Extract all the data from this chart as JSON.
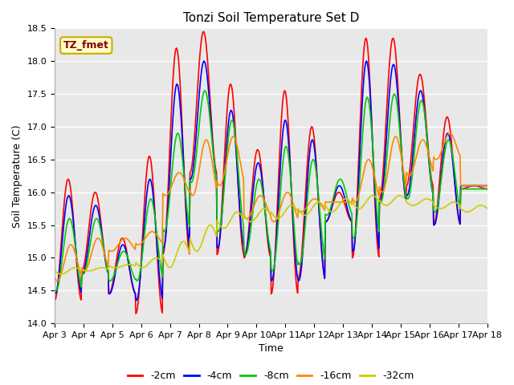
{
  "title": "Tonzi Soil Temperature Set D",
  "xlabel": "Time",
  "ylabel": "Soil Temperature (C)",
  "ylim": [
    14.0,
    18.5
  ],
  "background_color": "#e8e8e8",
  "grid_color": "#ffffff",
  "annotation_text": "TZ_fmet",
  "annotation_bg": "#ffffcc",
  "annotation_border": "#ccaa00",
  "xtick_labels": [
    "Apr 3",
    "Apr 4",
    "Apr 5",
    "Apr 6",
    "Apr 7",
    "Apr 8",
    "Apr 9",
    "Apr 10",
    "Apr 11",
    "Apr 12",
    "Apr 13",
    "Apr 14",
    "Apr 15",
    "Apr 16",
    "Apr 17",
    "Apr 18"
  ],
  "legend_labels": [
    "-2cm",
    "-4cm",
    "-8cm",
    "-16cm",
    "-32cm"
  ],
  "legend_colors": [
    "#ff0000",
    "#0000ff",
    "#00cc00",
    "#ff8800",
    "#cccc00"
  ],
  "series": {
    "-2cm": {
      "color": "#ff0000",
      "linewidth": 1.2
    },
    "-4cm": {
      "color": "#0000ff",
      "linewidth": 1.2
    },
    "-8cm": {
      "color": "#00cc00",
      "linewidth": 1.2
    },
    "-16cm": {
      "color": "#ff8800",
      "linewidth": 1.2
    },
    "-32cm": {
      "color": "#cccc00",
      "linewidth": 1.2
    }
  }
}
